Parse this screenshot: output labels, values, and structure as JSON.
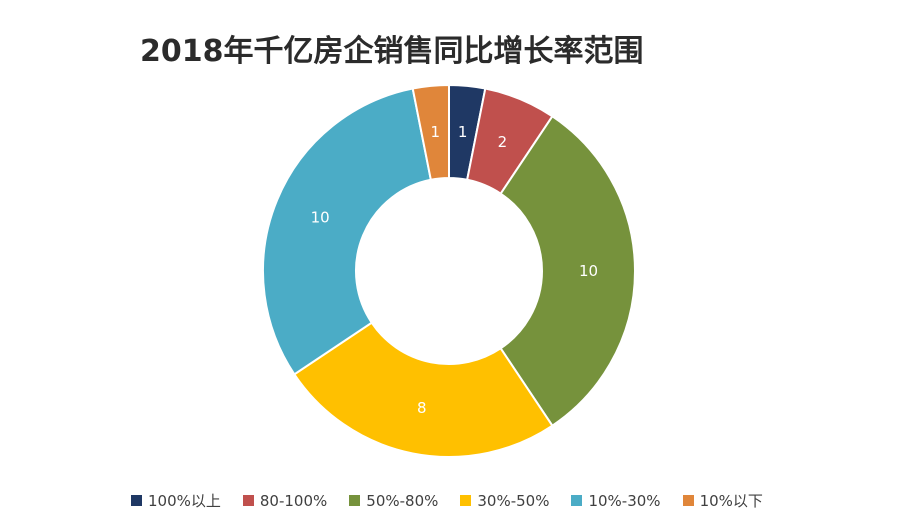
{
  "chart_data": {
    "type": "pie",
    "variant": "donut",
    "title": "2018年千亿房企销售同比增长率范围",
    "categories": [
      "100%以上",
      "80-100%",
      "50%-80%",
      "30%-50%",
      "10%-30%",
      "10%以下"
    ],
    "values": [
      1,
      2,
      10,
      8,
      10,
      1
    ],
    "colors": [
      "#1f3864",
      "#c0504d",
      "#76923c",
      "#ffc000",
      "#4bacc6",
      "#e0863a"
    ],
    "legend_position": "bottom",
    "data_labels": true
  }
}
